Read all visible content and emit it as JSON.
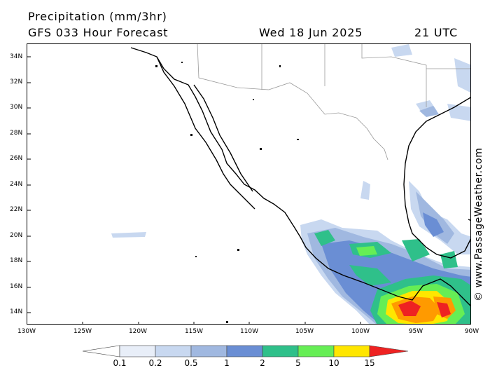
{
  "header": {
    "title": "Precipitation (mm/3hr)",
    "subtitle": "GFS 033 Hour Forecast",
    "date": "Wed 18 Jun 2025",
    "time": "21 UTC"
  },
  "map": {
    "lat_labels": [
      "34N",
      "32N",
      "30N",
      "28N",
      "26N",
      "24N",
      "22N",
      "20N",
      "18N",
      "16N",
      "14N"
    ],
    "lon_labels": [
      "130W",
      "125W",
      "120W",
      "115W",
      "110W",
      "105W",
      "100W",
      "95W",
      "90W"
    ],
    "lat_range": [
      13,
      35
    ],
    "lon_range": [
      -130,
      -90
    ],
    "land_line_color": "#000000",
    "border_color": "#999999"
  },
  "legend": {
    "labels": [
      "0.1",
      "0.2",
      "0.5",
      "1",
      "2",
      "5",
      "10",
      "15"
    ],
    "colors": [
      "#e8eef8",
      "#c8d8f0",
      "#a0b8e0",
      "#6a8ed4",
      "#2fc08a",
      "#66ee55",
      "#ffe600",
      "#ff9a00",
      "#ee2222"
    ]
  },
  "credit": "© www.PassageWeather.com"
}
